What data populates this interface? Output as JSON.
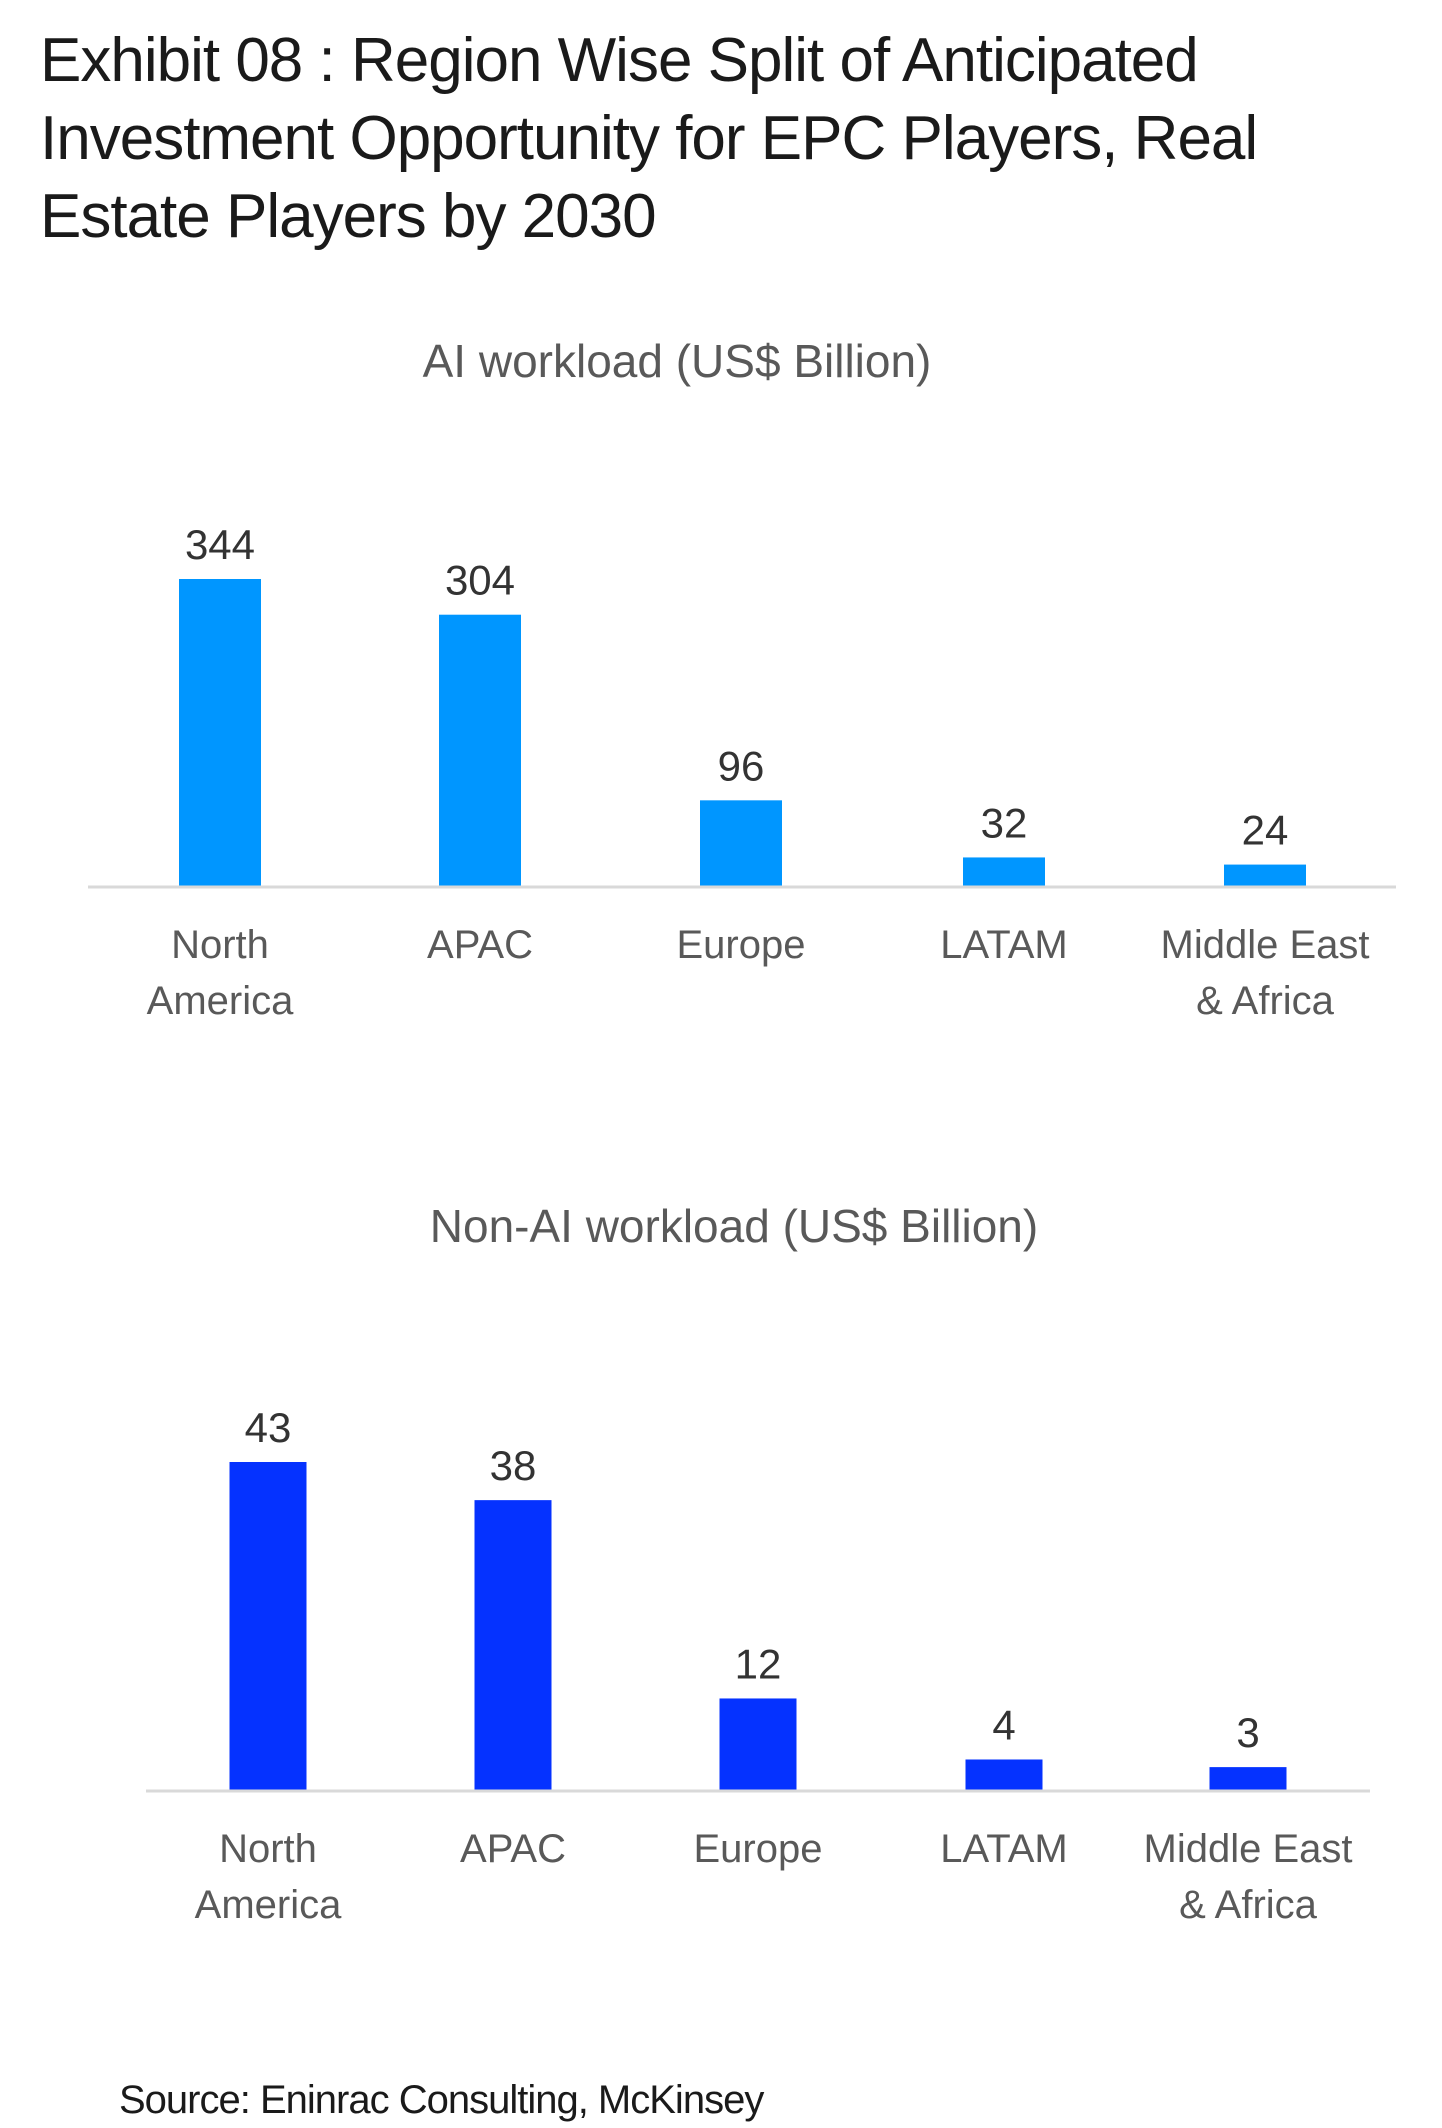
{
  "title": "Exhibit 08 : Region Wise Split of Anticipated Investment Opportunity for EPC Players, Real Estate Players by 2030",
  "source": "Source: Eninrac Consulting, McKinsey",
  "chart_data": [
    {
      "type": "bar",
      "title": "AI workload (US$ Billion)",
      "categories": [
        [
          "North",
          "America"
        ],
        [
          "APAC"
        ],
        [
          "Europe"
        ],
        [
          "LATAM"
        ],
        [
          "Middle East",
          "& Africa"
        ]
      ],
      "values": [
        344,
        304,
        96,
        32,
        24
      ],
      "color": "#0096FF",
      "grid": false,
      "legend": "none"
    },
    {
      "type": "bar",
      "title": "Non-AI workload (US$ Billion)",
      "categories": [
        [
          "North",
          "America"
        ],
        [
          "APAC"
        ],
        [
          "Europe"
        ],
        [
          "LATAM"
        ],
        [
          "Middle East",
          "& Africa"
        ]
      ],
      "values": [
        43,
        38,
        12,
        4,
        3
      ],
      "color": "#0532FF",
      "grid": false,
      "legend": "none"
    }
  ]
}
